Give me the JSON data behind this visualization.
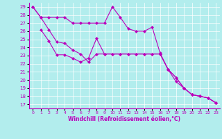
{
  "xlabel": "Windchill (Refroidissement éolien,°C)",
  "background_color": "#b2eded",
  "grid_color": "#ffffff",
  "line_color": "#bb00bb",
  "line1_x": [
    0,
    1,
    2,
    3,
    4,
    5,
    6,
    7,
    8,
    9,
    10,
    11,
    12,
    13,
    14,
    15,
    16,
    17,
    18,
    19,
    20,
    21,
    22,
    23
  ],
  "line1_y": [
    29,
    27.7,
    27.7,
    27.7,
    27.7,
    27.0,
    27.0,
    27.0,
    27.0,
    27.0,
    29.0,
    27.7,
    26.3,
    26.0,
    26.0,
    26.5,
    23.3,
    21.3,
    19.8,
    19.0,
    18.2,
    18.0,
    17.8,
    17.2
  ],
  "line2_x": [
    1,
    2,
    3,
    4,
    5,
    6,
    7,
    8,
    9,
    10,
    11,
    12,
    13,
    14,
    15,
    16,
    17,
    18,
    19,
    20,
    21,
    22,
    23
  ],
  "line2_y": [
    26.2,
    24.8,
    23.1,
    23.1,
    22.7,
    22.2,
    22.7,
    25.1,
    23.2,
    23.2,
    23.2,
    23.2,
    23.2,
    23.2,
    23.2,
    23.2,
    21.3,
    20.3,
    19.0,
    18.2,
    18.0,
    17.8,
    17.2
  ],
  "line3_x": [
    0,
    1,
    2,
    3,
    4,
    5,
    6,
    7,
    8,
    9,
    10,
    11,
    12,
    13,
    14,
    15,
    16,
    17,
    18,
    19,
    20,
    21,
    22,
    23
  ],
  "line3_y": [
    29,
    27.7,
    26.2,
    24.7,
    24.5,
    23.7,
    23.2,
    22.2,
    23.2,
    23.2,
    23.2,
    23.2,
    23.2,
    23.2,
    23.2,
    23.2,
    23.2,
    21.3,
    20.3,
    19.0,
    18.2,
    18.0,
    17.8,
    17.2
  ],
  "ylim": [
    17,
    29
  ],
  "xlim": [
    0,
    23
  ],
  "yticks": [
    17,
    18,
    19,
    20,
    21,
    22,
    23,
    24,
    25,
    26,
    27,
    28,
    29
  ],
  "xticks": [
    0,
    1,
    2,
    3,
    4,
    5,
    6,
    7,
    8,
    9,
    10,
    11,
    12,
    13,
    14,
    15,
    16,
    17,
    18,
    19,
    20,
    21,
    22,
    23
  ],
  "markersize": 2.5,
  "linewidth": 0.8
}
